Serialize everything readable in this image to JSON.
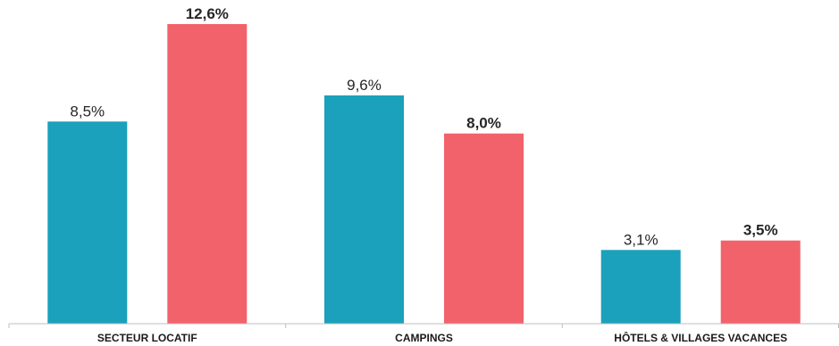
{
  "chart_data": {
    "type": "bar",
    "title": "",
    "xlabel": "",
    "ylabel": "",
    "categories": [
      "SECTEUR LOCATIF",
      "CAMPINGS",
      "HÔTELS & VILLAGES VACANCES"
    ],
    "series": [
      {
        "color": "#1ba1bb",
        "label_weight": "normal",
        "values": [
          8.5,
          9.6,
          3.1
        ],
        "labels": [
          "8,5%",
          "9,6%",
          "3,1%"
        ]
      },
      {
        "color": "#f2626a",
        "label_weight": "bold",
        "values": [
          12.6,
          8.0,
          3.5
        ],
        "labels": [
          "12,6%",
          "8,0%",
          "3,5%"
        ]
      }
    ],
    "ylim": [
      0,
      12.6
    ],
    "grid": false,
    "legend": "none",
    "axis_color": "#bfbfbf"
  }
}
